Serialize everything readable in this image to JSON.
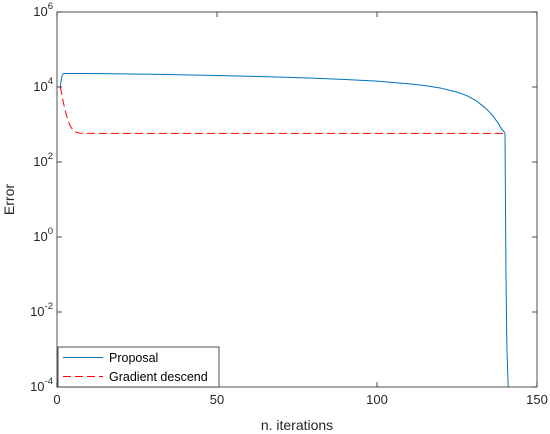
{
  "chart_data": {
    "type": "line",
    "title": "",
    "xlabel": "n. iterations",
    "ylabel": "Error",
    "xlim": [
      0,
      150
    ],
    "ylim": [
      0.0001,
      1000000
    ],
    "yscale": "log",
    "grid": false,
    "legend_position": "bottom-left",
    "x_ticks": [
      0,
      50,
      100,
      150
    ],
    "x_tick_labels": [
      "0",
      "50",
      "100",
      "150"
    ],
    "y_ticks": [
      0.0001,
      0.01,
      1,
      100,
      10000,
      1000000
    ],
    "y_tick_labels": [
      {
        "base": "10",
        "exp": "-4"
      },
      {
        "base": "10",
        "exp": "-2"
      },
      {
        "base": "10",
        "exp": "0"
      },
      {
        "base": "10",
        "exp": "2"
      },
      {
        "base": "10",
        "exp": "4"
      },
      {
        "base": "10",
        "exp": "6"
      }
    ],
    "series": [
      {
        "name": "Proposal",
        "color": "#0072BD",
        "dash": "solid",
        "x": [
          1,
          1.3,
          1.6,
          2,
          10,
          20,
          30,
          40,
          50,
          60,
          70,
          80,
          90,
          100,
          110,
          115,
          120,
          125,
          128,
          131,
          134,
          136,
          138,
          139,
          140,
          140.3,
          140.6,
          141
        ],
        "y": [
          10000,
          15000,
          20000,
          23000,
          22900,
          22400,
          21800,
          21100,
          20300,
          19400,
          18400,
          17200,
          15900,
          14300,
          12200,
          10900,
          9300,
          7300,
          5900,
          4300,
          2700,
          1800,
          1050,
          740,
          600,
          0.1,
          0.001,
          0.0001
        ]
      },
      {
        "name": "Gradient descend",
        "color": "#FF0000",
        "dash": "dashed",
        "x": [
          1,
          1.5,
          2,
          3,
          4,
          5,
          6,
          7,
          10,
          50,
          100,
          140
        ],
        "y": [
          10000,
          6500,
          3800,
          1700,
          960,
          700,
          620,
          590,
          580,
          580,
          580,
          580
        ]
      }
    ]
  }
}
